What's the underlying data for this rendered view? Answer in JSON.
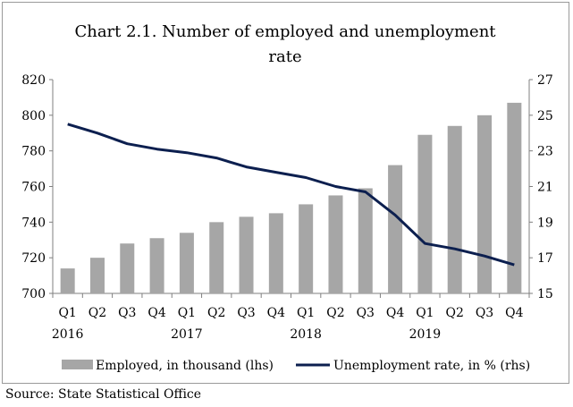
{
  "chart_data": {
    "type": "bar+line",
    "title_line1": "Chart 2.1. Number of employed and unemployment",
    "title_line2": "rate",
    "categories": [
      "Q1",
      "Q2",
      "Q3",
      "Q4",
      "Q1",
      "Q2",
      "Q3",
      "Q4",
      "Q1",
      "Q2",
      "Q3",
      "Q4",
      "Q1",
      "Q2",
      "Q3",
      "Q4"
    ],
    "years": [
      "2016",
      "2017",
      "2018",
      "2019"
    ],
    "series": [
      {
        "name": "Employed, in thousand (lhs)",
        "type": "bar",
        "axis": "left",
        "color": "#a6a6a6",
        "values": [
          714,
          720,
          728,
          731,
          734,
          740,
          743,
          745,
          750,
          755,
          759,
          772,
          789,
          794,
          800,
          807
        ]
      },
      {
        "name": "Unemployment rate, in % (rhs)",
        "type": "line",
        "axis": "right",
        "color": "#0c1f4f",
        "values": [
          24.5,
          24.0,
          23.4,
          23.1,
          22.9,
          22.6,
          22.1,
          21.8,
          21.5,
          21.0,
          20.7,
          19.4,
          17.8,
          17.5,
          17.1,
          16.6
        ]
      }
    ],
    "ylim_left": [
      700,
      820
    ],
    "yticks_left": [
      "700",
      "720",
      "740",
      "760",
      "780",
      "800",
      "820"
    ],
    "ylim_right": [
      15,
      27
    ],
    "yticks_right": [
      "15",
      "17",
      "19",
      "21",
      "23",
      "25",
      "27"
    ],
    "grid": false,
    "legend_position": "bottom"
  },
  "source": "Source: State Statistical Office"
}
